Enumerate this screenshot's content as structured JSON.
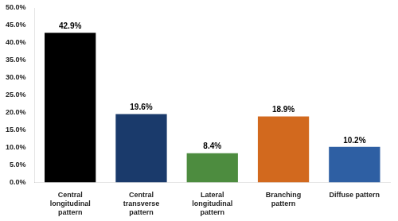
{
  "chart_data": {
    "type": "bar",
    "categories": [
      "Central\nlongitudinal\npattern",
      "Central\ntransverse\npattern",
      "Lateral\nlongitudinal\npattern",
      "Branching\npattern",
      "Diffuse pattern"
    ],
    "values": [
      42.9,
      19.6,
      8.4,
      18.9,
      10.2
    ],
    "value_labels": [
      "42.9%",
      "19.6%",
      "8.4%",
      "18.9%",
      "10.2%"
    ],
    "data_labels": true,
    "colors": [
      "#000000",
      "#1a3a6b",
      "#4d8c3f",
      "#d2691e",
      "#2e5fa3"
    ],
    "ylim": [
      0,
      50
    ],
    "yticks": [
      {
        "value": 0,
        "label": "0.0%"
      },
      {
        "value": 5,
        "label": "5.0%"
      },
      {
        "value": 10,
        "label": "10.0%"
      },
      {
        "value": 15,
        "label": "15.0%"
      },
      {
        "value": 20,
        "label": "20.0%"
      },
      {
        "value": 25,
        "label": "25.0%"
      },
      {
        "value": 30,
        "label": "30.0%"
      },
      {
        "value": 35,
        "label": "35.0%"
      },
      {
        "value": 40,
        "label": "40.0%"
      },
      {
        "value": 45,
        "label": "45.0%"
      },
      {
        "value": 50,
        "label": "50.0%"
      }
    ],
    "grid": false
  }
}
